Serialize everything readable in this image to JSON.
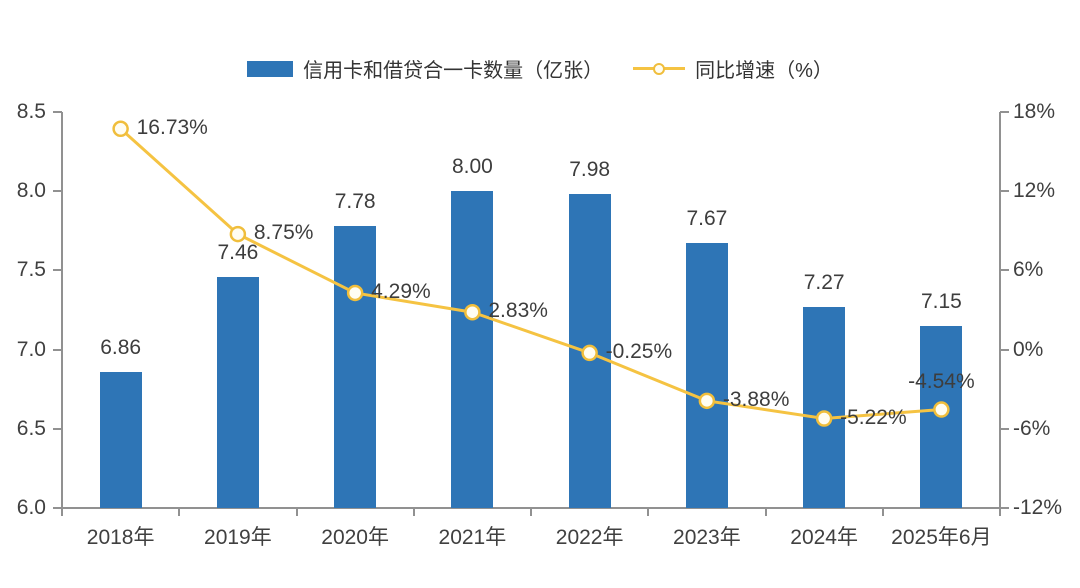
{
  "chart_data": {
    "type": "bar+line",
    "categories": [
      "2018年",
      "2019年",
      "2020年",
      "2021年",
      "2022年",
      "2023年",
      "2024年",
      "2025年6月"
    ],
    "series": [
      {
        "name": "信用卡和借贷合一卡数量（亿张）",
        "type": "bar",
        "axis": "left",
        "values": [
          6.86,
          7.46,
          7.78,
          8.0,
          7.98,
          7.67,
          7.27,
          7.15
        ],
        "labels": [
          "6.86",
          "7.46",
          "7.78",
          "8.00",
          "7.98",
          "7.67",
          "7.27",
          "7.15"
        ],
        "color": "#2E75B6"
      },
      {
        "name": "同比增速（%）",
        "type": "line",
        "axis": "right",
        "values": [
          16.73,
          8.75,
          4.29,
          2.83,
          -0.25,
          -3.88,
          -5.22,
          -4.54
        ],
        "labels": [
          "16.73%",
          "8.75%",
          "4.29%",
          "2.83%",
          "-0.25%",
          "-3.88%",
          "-5.22%",
          "-4.54%"
        ],
        "color": "#F5C342",
        "marker_fill": "#FFFDF2",
        "marker_stroke": "#F0BE3C"
      }
    ],
    "left_axis": {
      "min": 6.0,
      "max": 8.5,
      "ticks": [
        "8.5",
        "8.0",
        "7.5",
        "7.0",
        "6.5",
        "6.0"
      ]
    },
    "right_axis": {
      "min": -12,
      "max": 18,
      "ticks": [
        "18%",
        "12%",
        "6%",
        "0%",
        "-6%",
        "-12%"
      ]
    },
    "axis_color": "#919191",
    "grid": false,
    "legend_position": "top",
    "title": ""
  }
}
